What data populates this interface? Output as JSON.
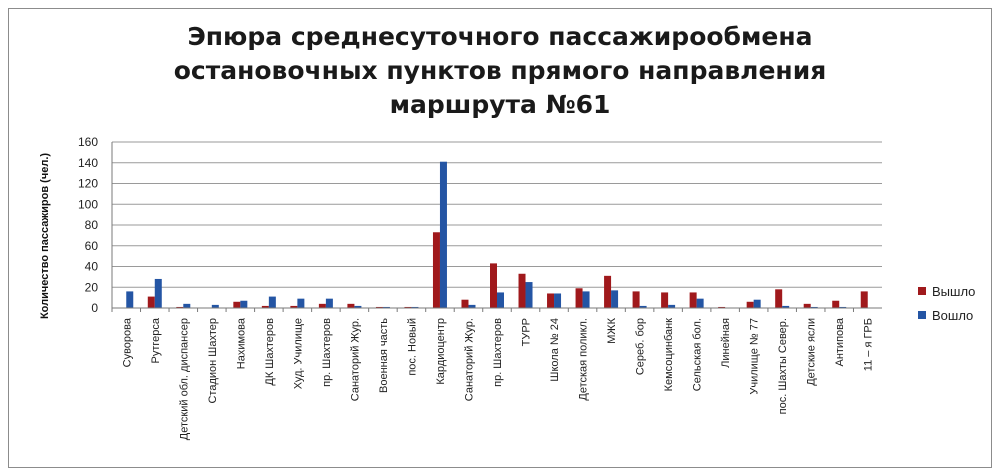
{
  "chart_data": {
    "type": "bar",
    "title": "Эпюра среднесуточного пассажирообмена\nостановочных пунктов прямого направления\nмаршрута №61",
    "ylabel": "Количество пассажиров (чел.)",
    "xlabel": "",
    "ylim": [
      0,
      160
    ],
    "yticks": [
      0,
      20,
      40,
      60,
      80,
      100,
      120,
      140,
      160
    ],
    "grid": true,
    "legend_position": "right",
    "categories": [
      "Суворова",
      "Рутгерса",
      "Детский обл. диспансер",
      "Стадион Шахтер",
      "Нахимова",
      "ДК Шахтеров",
      "Худ. Училище",
      "пр. Шахтеров",
      "Санаторий Жур.",
      "Военная часть",
      "пос. Новый",
      "Кардиоцентр",
      "Санаторий Жур.",
      "пр. Шахтеров",
      "ТУРР",
      "Школа № 24",
      "Детская поликл.",
      "МЖК",
      "Сереб. бор",
      "Кемсоцинбанк",
      "Сельская бол.",
      "Линейная",
      "Училище № 77",
      "пос. Шахты Север.",
      "Детские ясли",
      "Антипова",
      "11 – я ГРБ"
    ],
    "series": [
      {
        "name": "Вышло",
        "color": "#a0191c",
        "values": [
          0,
          11,
          1,
          0,
          6,
          2,
          2,
          4,
          4,
          1,
          1,
          73,
          8,
          43,
          33,
          14,
          19,
          31,
          16,
          15,
          15,
          1,
          6,
          18,
          4,
          7,
          16
        ]
      },
      {
        "name": "Вошло",
        "color": "#2455a4",
        "values": [
          16,
          28,
          4,
          3,
          7,
          11,
          9,
          9,
          2,
          1,
          1,
          141,
          3,
          15,
          25,
          14,
          16,
          17,
          2,
          3,
          9,
          0,
          8,
          2,
          1,
          1,
          0
        ]
      }
    ]
  }
}
